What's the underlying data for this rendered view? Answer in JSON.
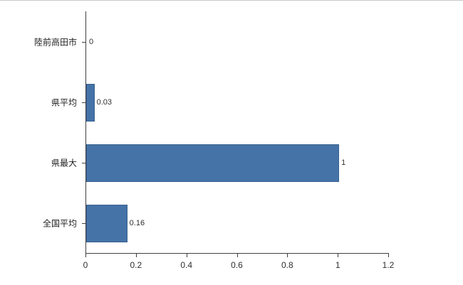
{
  "chart_data": {
    "type": "bar",
    "orientation": "horizontal",
    "title": "",
    "xlabel": "",
    "ylabel": "",
    "categories": [
      "陸前高田市",
      "県平均",
      "県最大",
      "全国平均"
    ],
    "values": [
      0,
      0.03,
      1,
      0.16
    ],
    "value_labels": [
      "0",
      "0.03",
      "1",
      "0.16"
    ],
    "x_ticks": [
      0,
      0.2,
      0.4,
      0.6,
      0.8,
      1,
      1.2
    ],
    "x_tick_labels": [
      "0",
      "0.2",
      "0.4",
      "0.6",
      "0.8",
      "1",
      "1.2"
    ],
    "xlim": [
      0,
      1.2
    ],
    "grid": false,
    "legend": false,
    "colors": {
      "bar": "#4573a7",
      "bar_border": "#38618f",
      "axis": "#404040",
      "text": "#303030"
    }
  }
}
